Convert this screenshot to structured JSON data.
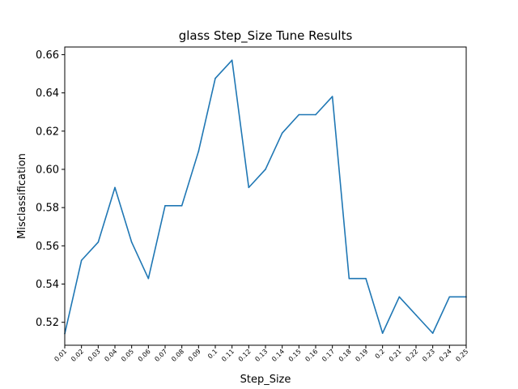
{
  "chart_data": {
    "type": "line",
    "title": "glass Step_Size Tune Results",
    "xlabel": "Step_Size",
    "ylabel": "Misclassification",
    "categories": [
      "0.01",
      "0.02",
      "0.03",
      "0.04",
      "0.05",
      "0.06",
      "0.07",
      "0.08",
      "0.09",
      "0.1",
      "0.11",
      "0.12",
      "0.13",
      "0.14",
      "0.15",
      "0.16",
      "0.17",
      "0.18",
      "0.19",
      "0.2",
      "0.21",
      "0.22",
      "0.23",
      "0.24",
      "0.25"
    ],
    "series": [
      {
        "values": [
          0.514,
          0.5524,
          0.5619,
          0.5905,
          0.5619,
          0.5429,
          0.581,
          0.581,
          0.6095,
          0.6476,
          0.6571,
          0.5905,
          0.6,
          0.619,
          0.6286,
          0.6286,
          0.6381,
          0.5429,
          0.5429,
          0.5143,
          0.5333,
          0.5238,
          0.5143,
          0.5333,
          0.5333
        ],
        "color": "#1f77b4"
      }
    ],
    "yticks": [
      "0.52",
      "0.54",
      "0.56",
      "0.58",
      "0.60",
      "0.62",
      "0.64",
      "0.66"
    ],
    "ylim": [
      0.508,
      0.664
    ],
    "grid": false,
    "legend": "none"
  }
}
